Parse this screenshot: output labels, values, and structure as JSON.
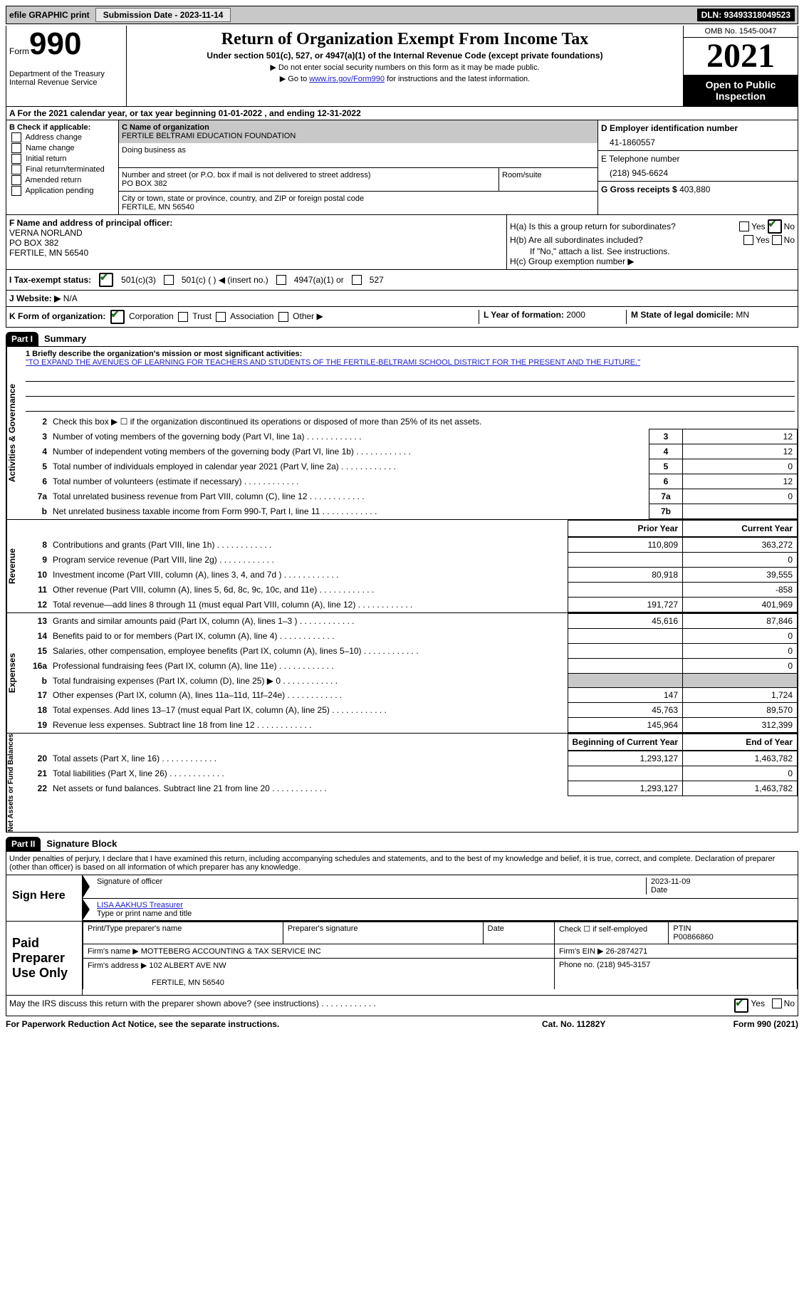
{
  "topbar": {
    "efile": "efile GRAPHIC print",
    "submission": "Submission Date - 2023-11-14",
    "dln": "DLN: 93493318049523"
  },
  "header": {
    "form": "Form",
    "num": "990",
    "title": "Return of Organization Exempt From Income Tax",
    "sub": "Under section 501(c), 527, or 4947(a)(1) of the Internal Revenue Code (except private foundations)",
    "arrow1": "▶ Do not enter social security numbers on this form as it may be made public.",
    "arrow2_prefix": "▶ Go to ",
    "arrow2_link": "www.irs.gov/Form990",
    "arrow2_suffix": " for instructions and the latest information.",
    "dept": "Department of the Treasury",
    "irs": "Internal Revenue Service",
    "omb": "OMB No. 1545-0047",
    "year": "2021",
    "open": "Open to Public Inspection"
  },
  "rowA": {
    "text": "A For the 2021 calendar year, or tax year beginning 01-01-2022   , and ending 12-31-2022"
  },
  "B": {
    "label": "B Check if applicable:",
    "opts": [
      "Address change",
      "Name change",
      "Initial return",
      "Final return/terminated",
      "Amended return",
      "Application pending"
    ]
  },
  "C": {
    "name_label": "C Name of organization",
    "name": "FERTILE BELTRAMI EDUCATION FOUNDATION",
    "dba_label": "Doing business as",
    "street_label": "Number and street (or P.O. box if mail is not delivered to street address)",
    "street": "PO BOX 382",
    "room_label": "Room/suite",
    "city_label": "City or town, state or province, country, and ZIP or foreign postal code",
    "city": "FERTILE, MN  56540"
  },
  "D": {
    "ein_label": "D Employer identification number",
    "ein": "41-1860557",
    "phone_label": "E Telephone number",
    "phone": "(218) 945-6624",
    "gross_label": "G Gross receipts $",
    "gross": "403,880"
  },
  "F": {
    "label": "F  Name and address of principal officer:",
    "name": "VERNA NORLAND",
    "street": "PO BOX 382",
    "city": "FERTILE, MN  56540"
  },
  "H": {
    "a_label": "H(a)  Is this a group return for subordinates?",
    "b_label": "H(b)  Are all subordinates included?",
    "b_note": "If \"No,\" attach a list. See instructions.",
    "c_label": "H(c)  Group exemption number ▶",
    "yes": "Yes",
    "no": "No"
  },
  "I": {
    "label": "I  Tax-exempt status:",
    "opt1": "501(c)(3)",
    "opt2": "501(c) (   ) ◀ (insert no.)",
    "opt3": "4947(a)(1) or",
    "opt4": "527"
  },
  "J": {
    "label": "J  Website: ▶",
    "val": "N/A"
  },
  "K": {
    "label": "K Form of organization:",
    "opts": [
      "Corporation",
      "Trust",
      "Association",
      "Other ▶"
    ],
    "year_label": "L Year of formation:",
    "year": "2000",
    "state_label": "M State of legal domicile:",
    "state": "MN"
  },
  "part1": {
    "header": "Part I",
    "title": "Summary"
  },
  "summary": {
    "mission_label": "1  Briefly describe the organization's mission or most significant activities:",
    "mission": "\"TO EXPAND THE AVENUES OF LEARNING FOR TEACHERS AND STUDENTS OF THE FERTILE-BELTRAMI SCHOOL DISTRICT FOR THE PRESENT AND THE FUTURE.\"",
    "line2": "Check this box ▶ ☐ if the organization discontinued its operations or disposed of more than 25% of its net assets.",
    "rows_gov": [
      {
        "n": "3",
        "d": "Number of voting members of the governing body (Part VI, line 1a)",
        "box": "3",
        "v": "12"
      },
      {
        "n": "4",
        "d": "Number of independent voting members of the governing body (Part VI, line 1b)",
        "box": "4",
        "v": "12"
      },
      {
        "n": "5",
        "d": "Total number of individuals employed in calendar year 2021 (Part V, line 2a)",
        "box": "5",
        "v": "0"
      },
      {
        "n": "6",
        "d": "Total number of volunteers (estimate if necessary)",
        "box": "6",
        "v": "12"
      },
      {
        "n": "7a",
        "d": "Total unrelated business revenue from Part VIII, column (C), line 12",
        "box": "7a",
        "v": "0"
      },
      {
        "n": "b",
        "d": "Net unrelated business taxable income from Form 990-T, Part I, line 11",
        "box": "7b",
        "v": ""
      }
    ],
    "col_headers": {
      "prior": "Prior Year",
      "current": "Current Year",
      "boy": "Beginning of Current Year",
      "eoy": "End of Year"
    },
    "revenue": [
      {
        "n": "8",
        "d": "Contributions and grants (Part VIII, line 1h)",
        "p": "110,809",
        "c": "363,272"
      },
      {
        "n": "9",
        "d": "Program service revenue (Part VIII, line 2g)",
        "p": "",
        "c": "0"
      },
      {
        "n": "10",
        "d": "Investment income (Part VIII, column (A), lines 3, 4, and 7d )",
        "p": "80,918",
        "c": "39,555"
      },
      {
        "n": "11",
        "d": "Other revenue (Part VIII, column (A), lines 5, 6d, 8c, 9c, 10c, and 11e)",
        "p": "",
        "c": "-858"
      },
      {
        "n": "12",
        "d": "Total revenue—add lines 8 through 11 (must equal Part VIII, column (A), line 12)",
        "p": "191,727",
        "c": "401,969"
      }
    ],
    "expenses": [
      {
        "n": "13",
        "d": "Grants and similar amounts paid (Part IX, column (A), lines 1–3 )",
        "p": "45,616",
        "c": "87,846"
      },
      {
        "n": "14",
        "d": "Benefits paid to or for members (Part IX, column (A), line 4)",
        "p": "",
        "c": "0"
      },
      {
        "n": "15",
        "d": "Salaries, other compensation, employee benefits (Part IX, column (A), lines 5–10)",
        "p": "",
        "c": "0"
      },
      {
        "n": "16a",
        "d": "Professional fundraising fees (Part IX, column (A), line 11e)",
        "p": "",
        "c": "0"
      },
      {
        "n": "b",
        "d": "Total fundraising expenses (Part IX, column (D), line 25) ▶ 0",
        "p": "shade",
        "c": "shade"
      },
      {
        "n": "17",
        "d": "Other expenses (Part IX, column (A), lines 11a–11d, 11f–24e)",
        "p": "147",
        "c": "1,724"
      },
      {
        "n": "18",
        "d": "Total expenses. Add lines 13–17 (must equal Part IX, column (A), line 25)",
        "p": "45,763",
        "c": "89,570"
      },
      {
        "n": "19",
        "d": "Revenue less expenses. Subtract line 18 from line 12",
        "p": "145,964",
        "c": "312,399"
      }
    ],
    "netassets": [
      {
        "n": "20",
        "d": "Total assets (Part X, line 16)",
        "p": "1,293,127",
        "c": "1,463,782"
      },
      {
        "n": "21",
        "d": "Total liabilities (Part X, line 26)",
        "p": "",
        "c": "0"
      },
      {
        "n": "22",
        "d": "Net assets or fund balances. Subtract line 21 from line 20",
        "p": "1,293,127",
        "c": "1,463,782"
      }
    ],
    "side": {
      "gov": "Activities & Governance",
      "rev": "Revenue",
      "exp": "Expenses",
      "net": "Net Assets or Fund Balances"
    }
  },
  "part2": {
    "header": "Part II",
    "title": "Signature Block",
    "declaration": "Under penalties of perjury, I declare that I have examined this return, including accompanying schedules and statements, and to the best of my knowledge and belief, it is true, correct, and complete. Declaration of preparer (other than officer) is based on all information of which preparer has any knowledge."
  },
  "sign": {
    "here": "Sign Here",
    "sig_label": "Signature of officer",
    "date_label": "Date",
    "date": "2023-11-09",
    "name": "LISA AAKHUS  Treasurer",
    "name_label": "Type or print name and title"
  },
  "paid": {
    "label": "Paid Preparer Use Only",
    "h1": "Print/Type preparer's name",
    "h2": "Preparer's signature",
    "h3": "Date",
    "h4_check": "Check ☐ if self-employed",
    "h5": "PTIN",
    "ptin": "P00866860",
    "firm_label": "Firm's name    ▶",
    "firm": "MOTTEBERG ACCOUNTING & TAX SERVICE INC",
    "ein_label": "Firm's EIN ▶",
    "ein": "26-2874271",
    "addr_label": "Firm's address ▶",
    "addr1": "102 ALBERT AVE NW",
    "addr2": "FERTILE, MN  56540",
    "phone_label": "Phone no.",
    "phone": "(218) 945-3157"
  },
  "discuss": {
    "text": "May the IRS discuss this return with the preparer shown above? (see instructions)",
    "yes": "Yes",
    "no": "No"
  },
  "footer": {
    "left": "For Paperwork Reduction Act Notice, see the separate instructions.",
    "mid": "Cat. No. 11282Y",
    "right": "Form 990 (2021)"
  }
}
